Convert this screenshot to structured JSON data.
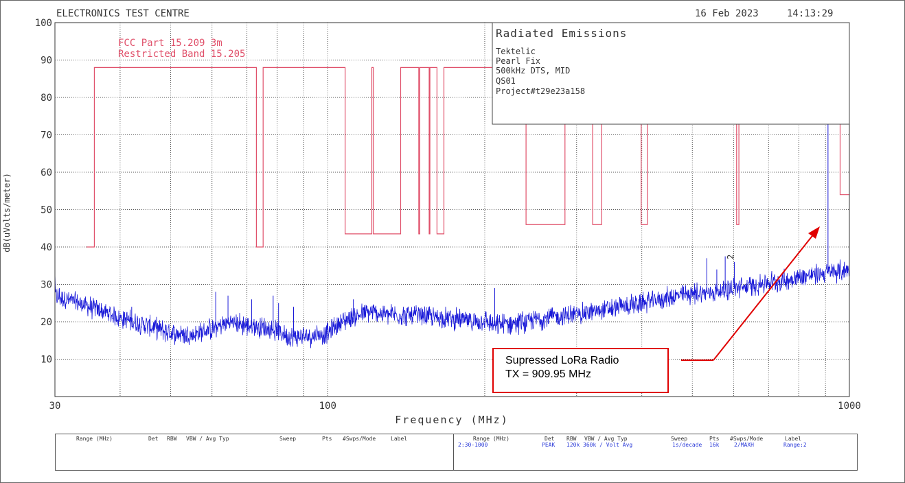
{
  "header": {
    "lab": "ELECTRONICS TEST CENTRE",
    "date": "16 Feb 2023",
    "time": "14:13:29"
  },
  "limit_labels": [
    "FCC Part 15.209 3m",
    "Restricted Band 15.205"
  ],
  "info_box": {
    "title": "Radiated Emissions",
    "lines": [
      "Tektelic",
      "Pearl Fix",
      "500kHz DTS, MID",
      "QS01",
      "Project#t29e23a158"
    ]
  },
  "marker_label": "2",
  "callout": {
    "line1": "Supressed LoRa Radio",
    "line2": "TX = 909.95 MHz"
  },
  "colors": {
    "limit": "#e0506a",
    "trace": "#1a1ad8",
    "callout": "#e00000"
  },
  "chart_data": {
    "type": "line",
    "xlabel": "Frequency (MHz)",
    "ylabel": "dB(uVolts/meter)",
    "x_scale": "log",
    "xlim": [
      30,
      1000
    ],
    "ylim": [
      0,
      100
    ],
    "grid": true,
    "x_tick_labels": [
      "30",
      "100",
      "1000"
    ],
    "x_minor_ticks": [
      40,
      50,
      60,
      70,
      80,
      90,
      200,
      300,
      400,
      500,
      600,
      700,
      800,
      900
    ],
    "y_ticks": [
      10,
      20,
      30,
      40,
      50,
      60,
      70,
      80,
      90,
      100
    ],
    "series": [
      {
        "name": "FCC Part 15.209 3m",
        "style": "step",
        "points": [
          [
            34.5,
            40
          ],
          [
            35.7,
            40
          ],
          [
            35.7,
            88
          ],
          [
            73,
            88
          ],
          [
            73,
            40
          ],
          [
            75.2,
            40
          ],
          [
            75.2,
            88
          ],
          [
            108,
            88
          ],
          [
            108,
            43.5
          ],
          [
            121.5,
            43.5
          ],
          [
            121.5,
            88
          ],
          [
            122.3,
            88
          ],
          [
            122.3,
            43.5
          ],
          [
            138,
            43.5
          ],
          [
            138,
            88
          ],
          [
            149.5,
            88
          ],
          [
            149.5,
            43.5
          ],
          [
            150.1,
            43.5
          ],
          [
            150.1,
            88
          ],
          [
            156.5,
            88
          ],
          [
            156.5,
            43.5
          ],
          [
            157,
            43.5
          ],
          [
            157,
            88
          ],
          [
            162,
            88
          ],
          [
            162,
            43.5
          ],
          [
            167,
            43.5
          ],
          [
            167,
            88
          ],
          [
            240,
            88
          ],
          [
            240,
            46
          ],
          [
            285,
            46
          ],
          [
            285,
            88
          ],
          [
            322,
            88
          ],
          [
            322,
            46
          ],
          [
            335,
            46
          ],
          [
            335,
            88
          ],
          [
            399,
            88
          ],
          [
            399,
            46
          ],
          [
            410,
            46
          ],
          [
            410,
            88
          ],
          [
            608,
            88
          ],
          [
            608,
            46
          ],
          [
            614,
            46
          ],
          [
            614,
            88
          ],
          [
            960,
            88
          ],
          [
            960,
            54
          ],
          [
            1000,
            54
          ]
        ]
      },
      {
        "name": "Range 2 PEAK",
        "style": "noise",
        "baseline": [
          [
            30,
            27
          ],
          [
            35,
            24
          ],
          [
            40,
            21
          ],
          [
            45,
            19
          ],
          [
            50,
            17
          ],
          [
            55,
            16.5
          ],
          [
            60,
            18
          ],
          [
            65,
            20
          ],
          [
            70,
            19
          ],
          [
            75,
            18.5
          ],
          [
            80,
            17.5
          ],
          [
            85,
            16
          ],
          [
            90,
            16
          ],
          [
            95,
            16.5
          ],
          [
            100,
            17
          ],
          [
            105,
            19.5
          ],
          [
            110,
            21
          ],
          [
            120,
            22.5
          ],
          [
            130,
            22
          ],
          [
            150,
            21.5
          ],
          [
            170,
            21
          ],
          [
            180,
            20.5
          ],
          [
            190,
            20
          ],
          [
            200,
            20.5
          ],
          [
            205,
            19.5
          ],
          [
            210,
            18.8
          ],
          [
            220,
            19.5
          ],
          [
            240,
            20
          ],
          [
            260,
            21
          ],
          [
            300,
            22
          ],
          [
            350,
            23.5
          ],
          [
            400,
            25
          ],
          [
            450,
            26.5
          ],
          [
            500,
            27.5
          ],
          [
            550,
            28
          ],
          [
            600,
            29
          ],
          [
            650,
            29.5
          ],
          [
            700,
            30.5
          ],
          [
            750,
            31
          ],
          [
            800,
            32
          ],
          [
            850,
            32.5
          ],
          [
            900,
            33
          ],
          [
            950,
            33.5
          ],
          [
            1000,
            34
          ]
        ],
        "spikes": [
          [
            42.1,
            24
          ],
          [
            61,
            28
          ],
          [
            64.4,
            27
          ],
          [
            71.5,
            26
          ],
          [
            78.6,
            27
          ],
          [
            80.5,
            25
          ],
          [
            86,
            24
          ],
          [
            112,
            26
          ],
          [
            209,
            29
          ],
          [
            533,
            37
          ],
          [
            557,
            34
          ],
          [
            578,
            37.5
          ],
          [
            602,
            36
          ],
          [
            909.95,
            74
          ]
        ]
      }
    ],
    "table": {
      "headers": [
        "Range (MHz)",
        "Det",
        "RBW",
        "VBW / Avg Typ",
        "Sweep",
        "Pts",
        "#Swps/Mode",
        "Label"
      ],
      "row": [
        "2:30-1000",
        "PEAK",
        "120k",
        "360k / Volt Avg",
        "1s/decade",
        "16k",
        "2/MAXH",
        "Range:2"
      ]
    }
  }
}
